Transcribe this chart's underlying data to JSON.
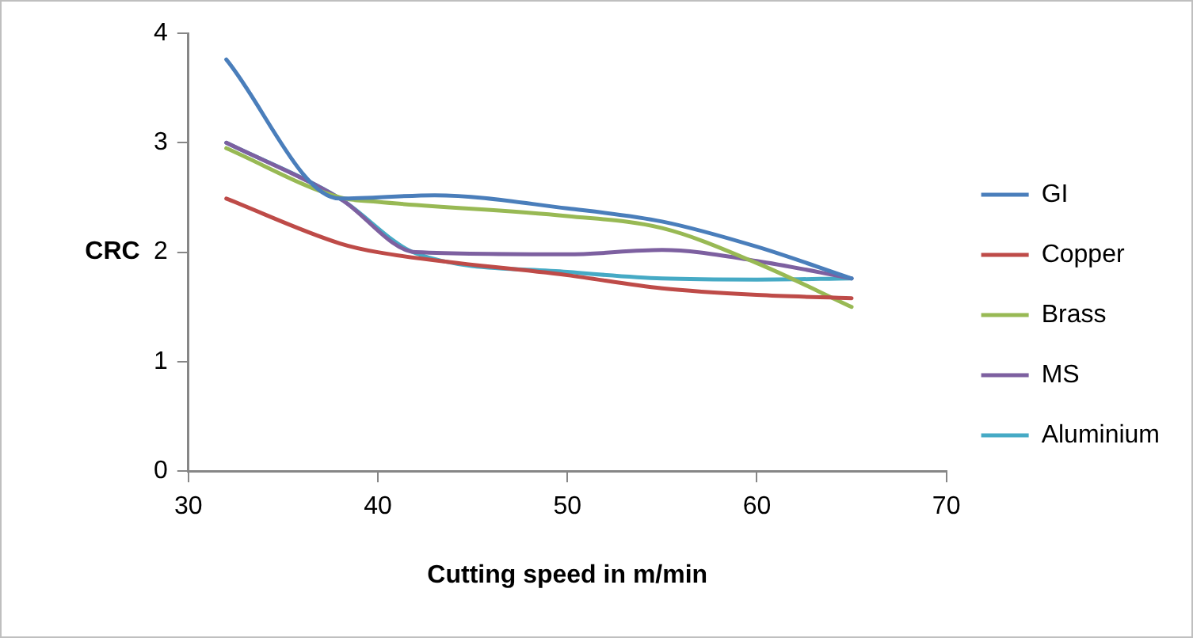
{
  "chart_data": {
    "type": "line",
    "xlabel": "Cutting speed in m/min",
    "ylabel": "CRC",
    "xlim": [
      30,
      70
    ],
    "xticks": [
      30,
      40,
      50,
      60,
      70
    ],
    "ylim": [
      0,
      4
    ],
    "yticks": [
      0,
      1,
      2,
      3,
      4
    ],
    "grid": false,
    "legend": "right",
    "marker": "none",
    "line_style": "solid",
    "series": [
      {
        "name": "GI",
        "color": "#4a7ebb",
        "x": [
          32,
          38,
          43,
          50,
          55,
          60,
          65
        ],
        "values": [
          3.76,
          2.49,
          2.52,
          2.4,
          2.28,
          2.05,
          1.76
        ]
      },
      {
        "name": "Copper",
        "color": "#be4b48",
        "x": [
          32,
          38,
          40,
          50,
          55,
          60,
          65
        ],
        "values": [
          2.49,
          2.08,
          2.0,
          1.79,
          1.67,
          1.61,
          1.58
        ]
      },
      {
        "name": "Brass",
        "color": "#98b954",
        "x": [
          32,
          38,
          40,
          50,
          55,
          60,
          65
        ],
        "values": [
          2.95,
          2.5,
          2.46,
          2.33,
          2.22,
          1.9,
          1.5
        ]
      },
      {
        "name": "MS",
        "color": "#7d60a0",
        "x": [
          32,
          38,
          42,
          50,
          55,
          60,
          65
        ],
        "values": [
          3.0,
          2.49,
          2.0,
          1.98,
          2.02,
          1.92,
          1.76
        ]
      },
      {
        "name": "Aluminium",
        "color": "#46aac5",
        "x": [
          32,
          38,
          42,
          50,
          55,
          60,
          65
        ],
        "values": [
          3.0,
          2.49,
          1.99,
          1.82,
          1.76,
          1.75,
          1.76
        ]
      }
    ]
  }
}
